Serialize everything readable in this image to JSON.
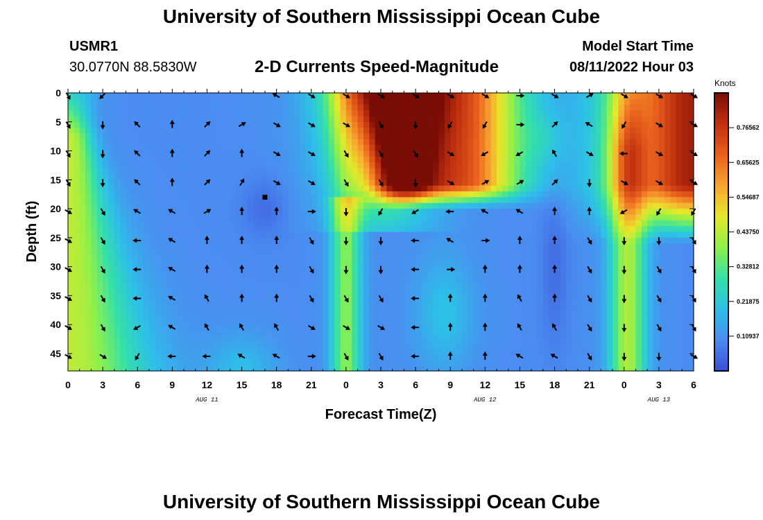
{
  "header": {
    "main_title": "University of Southern Mississippi Ocean Cube",
    "station_id": "USMR1",
    "station_coords": "30.0770N  88.5830W",
    "chart_title": "2-D Currents Speed-Magnitude",
    "model_start_label": "Model Start Time",
    "model_start_value": "08/11/2022 Hour 03"
  },
  "footer": {
    "repeated_title": "University of Southern Mississippi Ocean Cube"
  },
  "chart_data": {
    "type": "heatmap",
    "title": "2-D Currents Speed-Magnitude",
    "xlabel": "Forecast Time(Z)",
    "ylabel": "Depth (ft)",
    "x_ticks": [
      "0",
      "3",
      "6",
      "9",
      "12",
      "15",
      "18",
      "21",
      "0",
      "3",
      "6",
      "9",
      "12",
      "15",
      "18",
      "21",
      "0",
      "3",
      "6"
    ],
    "x_range": [
      0,
      54
    ],
    "y_ticks": [
      "0",
      "5",
      "10",
      "15",
      "20",
      "25",
      "30",
      "35",
      "40",
      "45"
    ],
    "y_range": [
      0,
      48
    ],
    "date_labels": [
      {
        "label": "AUG 11",
        "hour": 12
      },
      {
        "label": "AUG 12",
        "hour": 36
      },
      {
        "label": "AUG 13",
        "hour": 51
      }
    ],
    "colorbar": {
      "unit": "Knots",
      "range": [
        0.0,
        0.875
      ],
      "ticks": [
        "0.10937",
        "0.21875",
        "0.32812",
        "0.43750",
        "0.54687",
        "0.65625",
        "0.76562"
      ],
      "colors": [
        "#3a4fd6",
        "#4a8cf0",
        "#2dc0e8",
        "#34e0a8",
        "#8ef04a",
        "#e6e82a",
        "#f8a530",
        "#e8601c",
        "#c03010",
        "#7a0d05"
      ]
    },
    "arrow_hours": [
      0,
      3,
      6,
      9,
      12,
      15,
      18,
      21,
      24,
      27,
      30,
      33,
      36,
      39,
      42,
      45,
      48,
      51,
      54
    ],
    "arrow_depths": [
      0,
      5,
      10,
      15,
      20,
      25,
      30,
      35,
      40,
      45
    ],
    "arrow_angles_deg": [
      [
        150,
        225,
        null,
        null,
        null,
        null,
        300,
        120,
        120,
        120,
        120,
        120,
        120,
        90,
        120,
        60,
        120,
        120,
        120
      ],
      [
        150,
        180,
        315,
        0,
        45,
        60,
        120,
        120,
        120,
        150,
        180,
        210,
        210,
        90,
        45,
        300,
        210,
        120,
        120
      ],
      [
        150,
        180,
        315,
        0,
        45,
        0,
        120,
        120,
        150,
        150,
        150,
        120,
        240,
        240,
        330,
        120,
        270,
        120,
        120
      ],
      [
        150,
        180,
        315,
        0,
        45,
        30,
        120,
        120,
        150,
        150,
        180,
        120,
        60,
        60,
        45,
        180,
        120,
        120,
        120
      ],
      [
        120,
        150,
        300,
        300,
        60,
        0,
        0,
        90,
        180,
        210,
        240,
        270,
        300,
        300,
        0,
        0,
        240,
        210,
        210
      ],
      [
        120,
        150,
        270,
        300,
        0,
        0,
        0,
        150,
        180,
        180,
        270,
        300,
        90,
        0,
        0,
        150,
        180,
        180,
        150
      ],
      [
        120,
        150,
        270,
        300,
        0,
        0,
        0,
        150,
        180,
        180,
        270,
        90,
        0,
        0,
        0,
        150,
        180,
        150,
        150
      ],
      [
        120,
        150,
        270,
        300,
        330,
        0,
        0,
        150,
        150,
        150,
        270,
        0,
        0,
        330,
        0,
        150,
        180,
        150,
        150
      ],
      [
        120,
        150,
        240,
        300,
        330,
        330,
        330,
        120,
        120,
        120,
        270,
        0,
        0,
        330,
        330,
        150,
        180,
        150,
        150
      ],
      [
        120,
        120,
        210,
        270,
        270,
        300,
        300,
        90,
        150,
        150,
        270,
        0,
        0,
        300,
        300,
        150,
        180,
        180,
        120
      ]
    ]
  }
}
